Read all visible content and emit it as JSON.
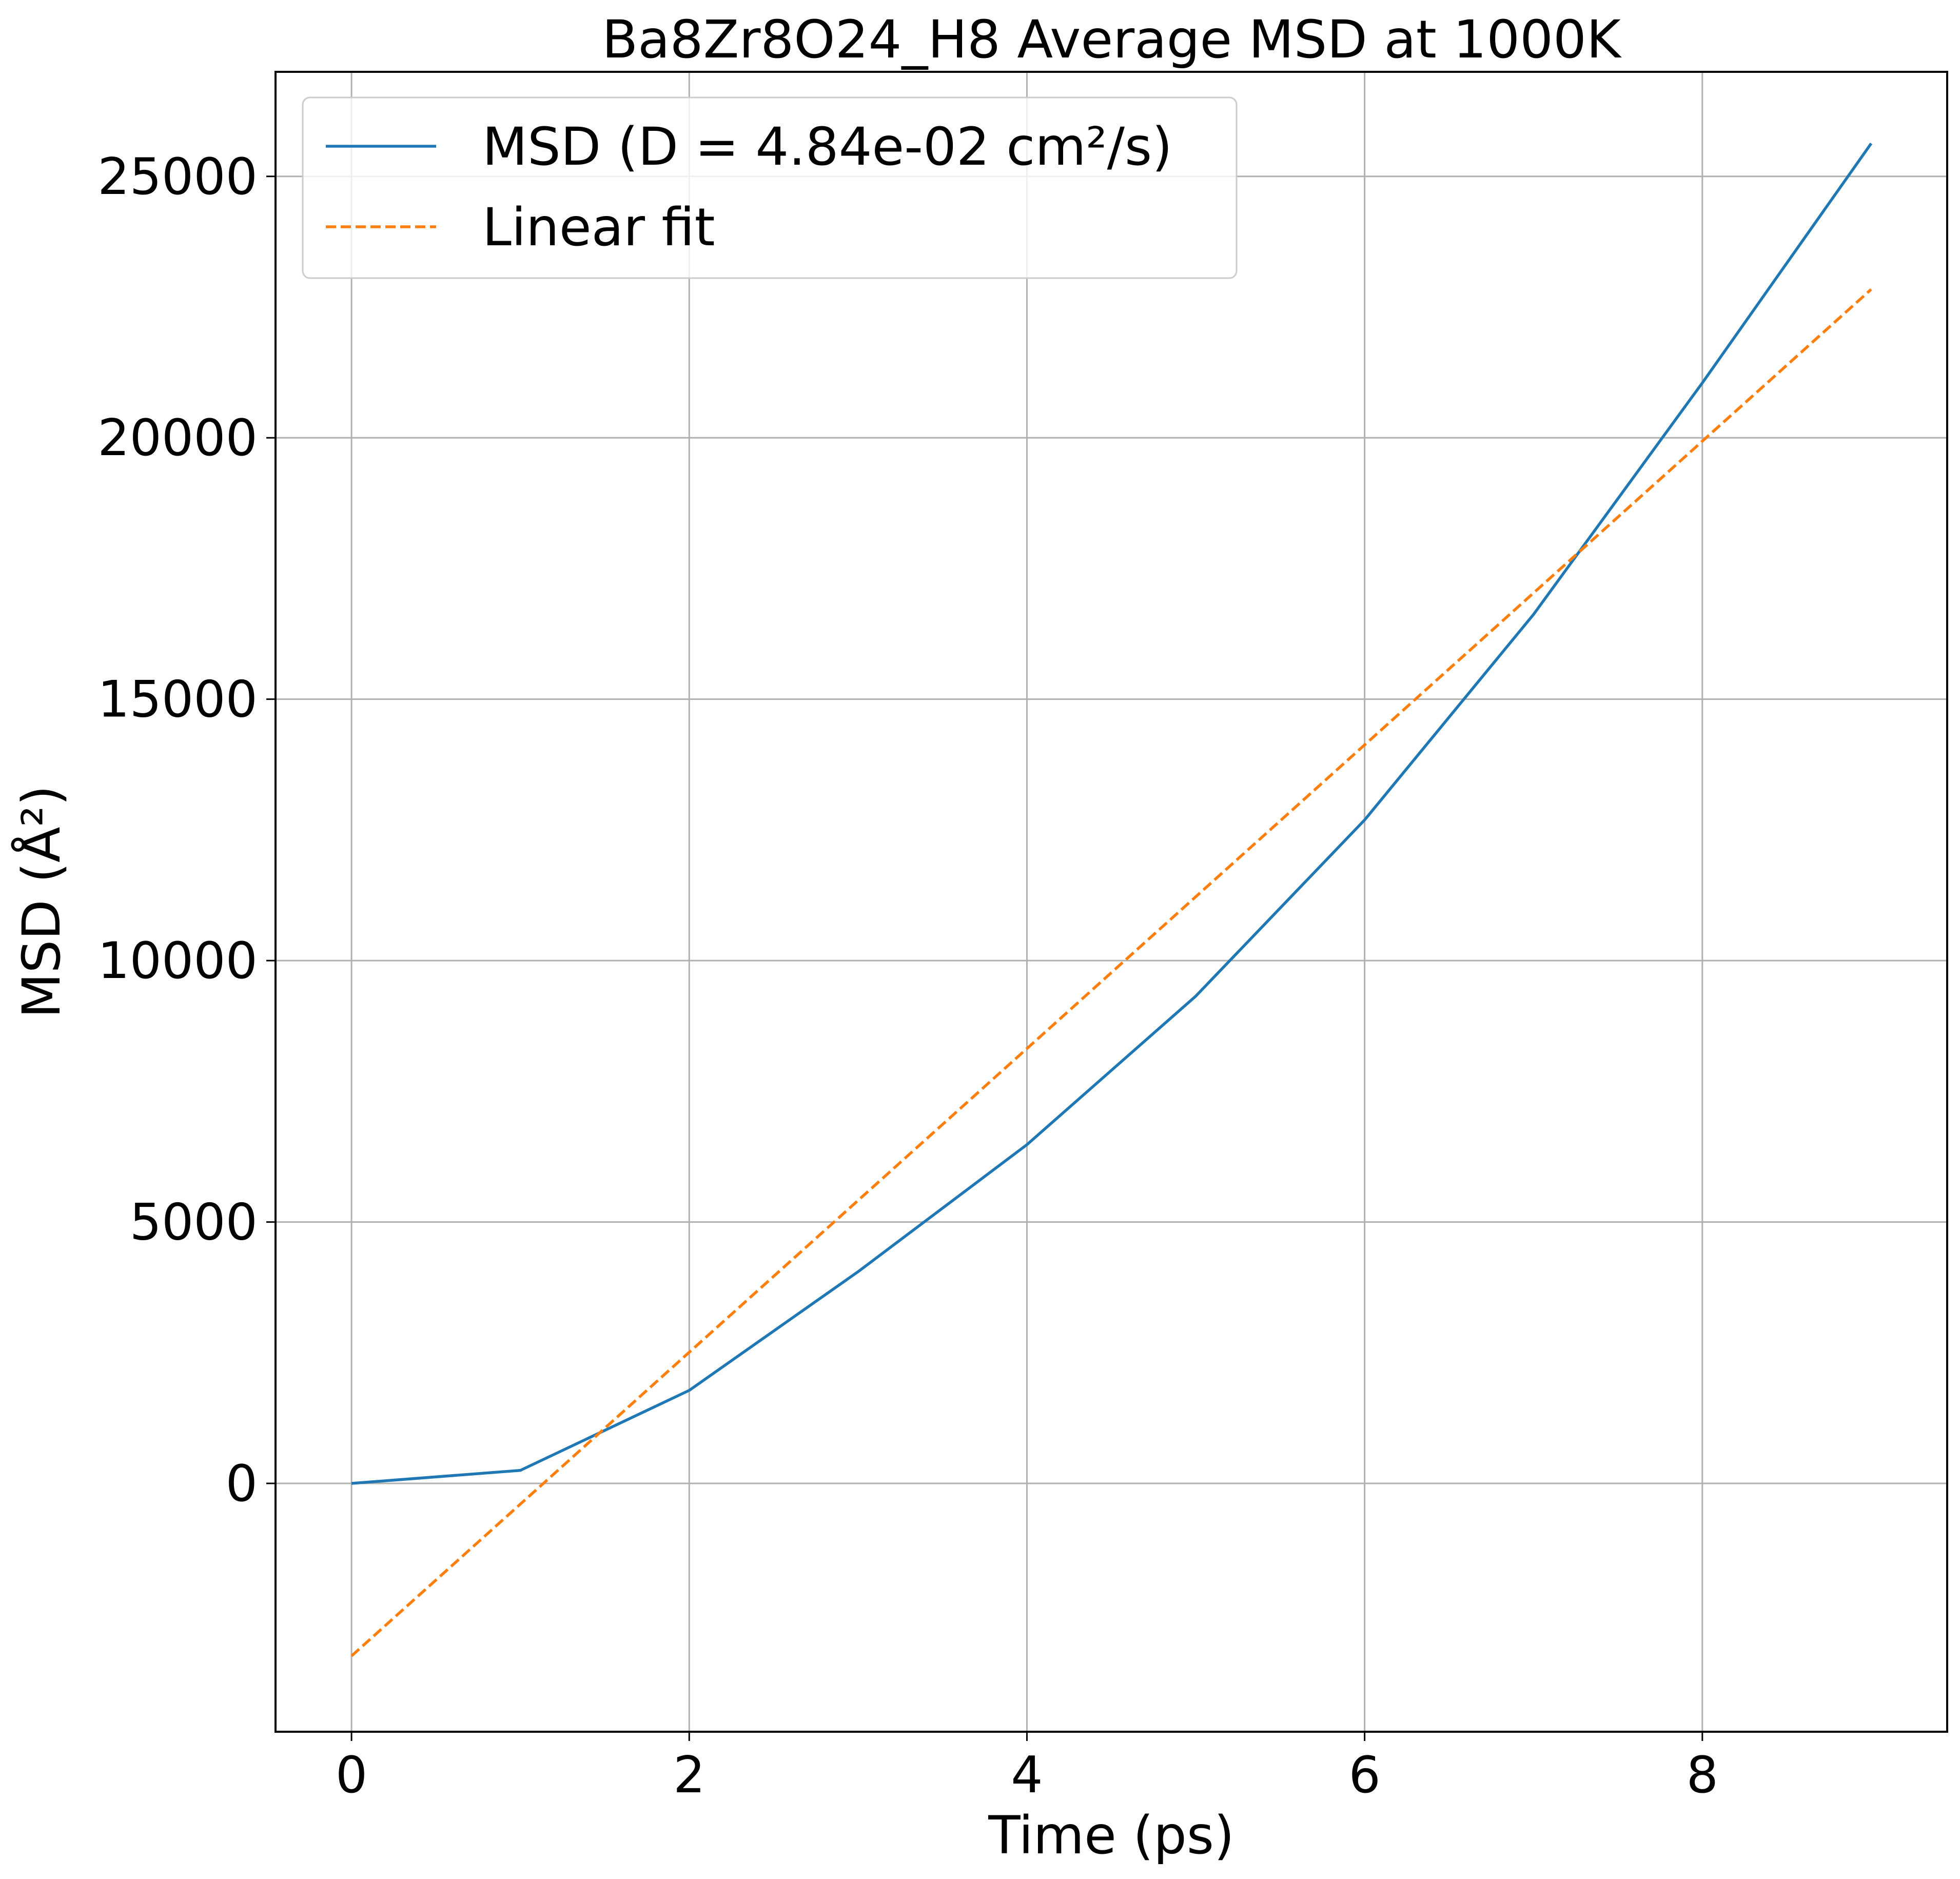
{
  "chart_data": {
    "type": "line",
    "title": "Ba8Zr8O24_H8 Average MSD at 1000K",
    "xlabel": "Time (ps)",
    "ylabel": "MSD (Å²)",
    "xlim": [
      -0.45,
      9.45
    ],
    "ylim": [
      -4750,
      27000
    ],
    "xticks": [
      0,
      2,
      4,
      6,
      8
    ],
    "yticks": [
      0,
      5000,
      10000,
      15000,
      20000,
      25000
    ],
    "grid": true,
    "legend_position": "top-left",
    "series": [
      {
        "name": "MSD (D = 4.84e-02 cm²/s)",
        "style": "solid",
        "color": "#1f77b4",
        "x": [
          0,
          1,
          2,
          3,
          4,
          5,
          6,
          7,
          8,
          9
        ],
        "y": [
          0,
          250,
          1780,
          4050,
          6480,
          9320,
          12690,
          16620,
          21050,
          25630
        ]
      },
      {
        "name": "Linear fit",
        "style": "dashed",
        "color": "#ff7f0e",
        "x": [
          0,
          9
        ],
        "y": [
          -3300,
          22840
        ]
      }
    ]
  }
}
